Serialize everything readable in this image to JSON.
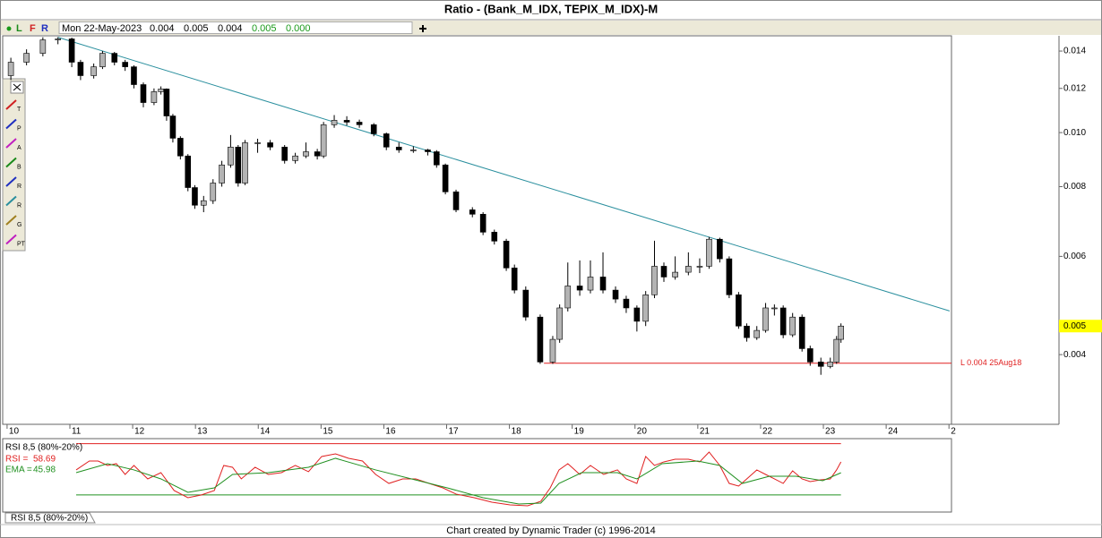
{
  "header": {
    "title": "Ratio - (Bank_M_IDX, TEPIX_M_IDX)-M",
    "flags": [
      "L",
      "F",
      "R"
    ],
    "date": "Mon 22-May-2023",
    "quote": [
      "0.004",
      "0.005",
      "0.004",
      "0.005",
      "0.000"
    ]
  },
  "tools": [
    "T",
    "P",
    "A",
    "B",
    "R",
    "R",
    "G",
    "PT"
  ],
  "chart_data": [
    {
      "type": "candlestick",
      "log_scale": true,
      "up_color": "#b4b4b4",
      "down_color": "#000000",
      "x": [
        10.06,
        10.31,
        10.57,
        10.81,
        11.03,
        11.17,
        11.38,
        11.52,
        11.71,
        11.88,
        12.02,
        12.17,
        12.34,
        12.45,
        12.54,
        12.64,
        12.76,
        12.88,
        12.99,
        13.13,
        13.28,
        13.42,
        13.56,
        13.68,
        13.79,
        13.99,
        14.19,
        14.42,
        14.59,
        14.76,
        14.94,
        15.04,
        15.21,
        15.41,
        15.61,
        15.84,
        16.04,
        16.24,
        16.47,
        16.7,
        16.84,
        16.98,
        17.15,
        17.41,
        17.58,
        17.76,
        17.95,
        18.08,
        18.26,
        18.49,
        18.69,
        18.8,
        18.93,
        19.12,
        19.29,
        19.49,
        19.69,
        19.86,
        20.03,
        20.17,
        20.31,
        20.46,
        20.64,
        20.85,
        21.03,
        21.18,
        21.35,
        21.5,
        21.65,
        21.78,
        21.94,
        22.08,
        22.22,
        22.36,
        22.51,
        22.66,
        22.79,
        22.96,
        23.11,
        23.21,
        23.28
      ],
      "open": [
        0.01265,
        0.01337,
        0.01387,
        0.01466,
        0.01472,
        0.01337,
        0.01265,
        0.01312,
        0.01387,
        0.01337,
        0.01312,
        0.01219,
        0.01132,
        0.01184,
        0.01197,
        0.01071,
        0.00977,
        0.00908,
        0.00797,
        0.00741,
        0.00755,
        0.00812,
        0.00875,
        0.00942,
        0.00812,
        0.00959,
        0.00959,
        0.00942,
        0.00891,
        0.00908,
        0.00924,
        0.00908,
        0.01033,
        0.01052,
        0.01044,
        0.01033,
        0.00995,
        0.00942,
        0.00931,
        0.00931,
        0.00924,
        0.00875,
        0.00783,
        0.00727,
        0.00714,
        0.00663,
        0.00639,
        0.00572,
        0.00522,
        0.00467,
        0.00388,
        0.00426,
        0.00485,
        0.00531,
        0.00522,
        0.00551,
        0.00522,
        0.00503,
        0.00485,
        0.00459,
        0.00512,
        0.00576,
        0.00551,
        0.00562,
        0.00576,
        0.00576,
        0.00644,
        0.00594,
        0.00512,
        0.0045,
        0.00429,
        0.00442,
        0.00485,
        0.00485,
        0.00434,
        0.00467,
        0.0041,
        0.00388,
        0.00381,
        0.00388,
        0.00426
      ],
      "high": [
        0.01362,
        0.0141,
        0.01482,
        0.01482,
        0.0148,
        0.0135,
        0.0133,
        0.014,
        0.01395,
        0.0135,
        0.0132,
        0.0123,
        0.012,
        0.0121,
        0.012,
        0.0108,
        0.00985,
        0.00915,
        0.00805,
        0.0077,
        0.00825,
        0.0089,
        0.0099,
        0.0095,
        0.0097,
        0.00975,
        0.0097,
        0.0095,
        0.0092,
        0.0096,
        0.00935,
        0.01045,
        0.01075,
        0.0107,
        0.01055,
        0.0104,
        0.01,
        0.0096,
        0.00945,
        0.00935,
        0.0093,
        0.0088,
        0.0079,
        0.00735,
        0.0072,
        0.0067,
        0.00645,
        0.0058,
        0.0053,
        0.00472,
        0.00432,
        0.00492,
        0.00585,
        0.0059,
        0.0059,
        0.0061,
        0.0053,
        0.0051,
        0.0049,
        0.0052,
        0.0064,
        0.00585,
        0.006,
        0.0061,
        0.00595,
        0.0065,
        0.00648,
        0.006,
        0.00518,
        0.00455,
        0.0045,
        0.00495,
        0.00492,
        0.0049,
        0.00475,
        0.00472,
        0.00415,
        0.00395,
        0.00395,
        0.00432,
        0.00455
      ],
      "low": [
        0.01242,
        0.0132,
        0.0137,
        0.0144,
        0.0131,
        0.01242,
        0.0125,
        0.013,
        0.0132,
        0.0129,
        0.012,
        0.0111,
        0.0112,
        0.0117,
        0.0105,
        0.0096,
        0.00895,
        0.00785,
        0.0073,
        0.0072,
        0.00745,
        0.008,
        0.00865,
        0.008,
        0.00805,
        0.0092,
        0.0093,
        0.0088,
        0.0088,
        0.009,
        0.00895,
        0.009,
        0.0102,
        0.0103,
        0.0102,
        0.00985,
        0.0093,
        0.0092,
        0.0092,
        0.0091,
        0.00865,
        0.00775,
        0.0072,
        0.00705,
        0.00655,
        0.0063,
        0.00565,
        0.00515,
        0.0046,
        0.00385,
        0.00385,
        0.0042,
        0.00478,
        0.0051,
        0.00515,
        0.00515,
        0.00495,
        0.00475,
        0.0044,
        0.0045,
        0.00505,
        0.0054,
        0.00545,
        0.00555,
        0.0056,
        0.0057,
        0.00585,
        0.00505,
        0.00445,
        0.00422,
        0.00425,
        0.00438,
        0.0047,
        0.00428,
        0.0043,
        0.00405,
        0.00382,
        0.00368,
        0.00378,
        0.00385,
        0.0042
      ],
      "close": [
        0.01337,
        0.01387,
        0.01466,
        0.01472,
        0.01337,
        0.01265,
        0.01312,
        0.01387,
        0.01337,
        0.01312,
        0.01219,
        0.01132,
        0.01184,
        0.01197,
        0.01071,
        0.00977,
        0.00908,
        0.00797,
        0.00741,
        0.00755,
        0.00812,
        0.00875,
        0.00942,
        0.00812,
        0.00959,
        0.00959,
        0.00942,
        0.00891,
        0.00908,
        0.00924,
        0.00908,
        0.01033,
        0.01052,
        0.01044,
        0.01033,
        0.00995,
        0.00942,
        0.00931,
        0.00931,
        0.00924,
        0.00875,
        0.00783,
        0.00727,
        0.00714,
        0.00663,
        0.00639,
        0.00572,
        0.00522,
        0.00467,
        0.00388,
        0.00426,
        0.00485,
        0.00531,
        0.00522,
        0.00551,
        0.00522,
        0.00503,
        0.00485,
        0.00459,
        0.00512,
        0.00576,
        0.00551,
        0.00562,
        0.00576,
        0.00576,
        0.00644,
        0.00594,
        0.00512,
        0.0045,
        0.00429,
        0.00442,
        0.00485,
        0.00485,
        0.00434,
        0.00467,
        0.0041,
        0.00388,
        0.00381,
        0.00388,
        0.00426,
        0.0045
      ],
      "xlim": [
        9.93,
        25.04
      ],
      "xticks": [
        10,
        11,
        12,
        13,
        14,
        15,
        16,
        17,
        18,
        19,
        20,
        21,
        22,
        23,
        24,
        {
          "value": 25,
          "label": "2"
        }
      ],
      "ylim": [
        0.003,
        0.0148
      ],
      "yticks": [
        0.004,
        0.006,
        0.008,
        {
          "value": 0.01,
          "label": "0.010"
        },
        0.012,
        0.014
      ],
      "trendline": {
        "x": [
          10.81,
          25.01
        ],
        "values": [
          0.01482,
          0.00479
        ],
        "color": "#2a8f9e"
      },
      "support": {
        "x": [
          18.55,
          25.04
        ],
        "values": [
          0.00386,
          0.00386
        ],
        "color": "#e02020",
        "label": "L 0.004 25Aug18"
      },
      "price_marker": {
        "value": 0.0045,
        "label": "0.005",
        "color": "#ffff00"
      }
    },
    {
      "type": "line",
      "title": "RSI 8,5 (80%-20%)",
      "ylim": [
        0,
        88
      ],
      "levels": [
        {
          "value": 80,
          "color": "#e02020"
        },
        {
          "value": 20,
          "color": "#209020"
        }
      ],
      "series": [
        {
          "name": "RSI =",
          "color": "#e02020",
          "x": [
            11.1,
            11.31,
            11.45,
            11.6,
            11.74,
            11.88,
            12.02,
            12.24,
            12.45,
            12.66,
            12.88,
            13.09,
            13.3,
            13.45,
            13.59,
            13.73,
            13.95,
            14.16,
            14.37,
            14.59,
            14.8,
            15.01,
            15.23,
            15.44,
            15.66,
            15.87,
            16.08,
            16.3,
            16.51,
            16.72,
            16.94,
            17.15,
            17.44,
            17.72,
            18.01,
            18.29,
            18.5,
            18.65,
            18.79,
            18.93,
            19.12,
            19.29,
            19.5,
            19.72,
            19.86,
            20.03,
            20.17,
            20.31,
            20.46,
            20.64,
            20.85,
            21.03,
            21.18,
            21.35,
            21.5,
            21.65,
            21.78,
            21.94,
            22.08,
            22.22,
            22.36,
            22.51,
            22.66,
            22.79,
            22.96,
            23.11,
            23.21,
            23.28
          ],
          "values": [
            49.3,
            59.7,
            59.7,
            54.5,
            56.6,
            44.0,
            54.5,
            38.8,
            46.1,
            25.2,
            16.8,
            19.9,
            25.2,
            54.5,
            52.4,
            38.8,
            52.4,
            44.0,
            46.1,
            54.5,
            47.2,
            65.0,
            68.1,
            62.9,
            59.7,
            44.0,
            33.5,
            38.8,
            38.8,
            33.5,
            28.3,
            21.0,
            16.8,
            11.5,
            8.4,
            7.3,
            12.6,
            28.3,
            49.3,
            56.6,
            44.0,
            54.5,
            44.0,
            49.3,
            38.8,
            33.5,
            65.0,
            54.5,
            58.7,
            61.8,
            61.8,
            58.7,
            70.2,
            54.5,
            33.5,
            30.4,
            38.8,
            49.3,
            44.0,
            38.8,
            33.5,
            48.2,
            38.8,
            35.6,
            37.7,
            38.8,
            49.3,
            58.69
          ]
        },
        {
          "name": "EMA =",
          "color": "#209020",
          "x": [
            11.1,
            11.6,
            12.02,
            12.45,
            12.88,
            13.3,
            13.59,
            14.16,
            14.8,
            15.23,
            15.87,
            16.44,
            17.01,
            17.58,
            18.15,
            18.5,
            18.79,
            19.15,
            19.72,
            20.03,
            20.43,
            21.0,
            21.35,
            21.71,
            22.14,
            22.56,
            22.99,
            23.28
          ],
          "values": [
            46.1,
            56.6,
            49.3,
            38.8,
            23.1,
            28.3,
            44.0,
            46.1,
            52.4,
            62.9,
            49.3,
            38.8,
            28.3,
            16.8,
            9.4,
            10.5,
            33.5,
            46.1,
            46.1,
            38.8,
            56.6,
            59.7,
            54.5,
            33.5,
            41.9,
            41.9,
            36.7,
            45.98
          ]
        }
      ]
    }
  ],
  "tab": "RSI 8,5 (80%-20%)",
  "footer": "Chart created by Dynamic Trader  (c) 1996-2014"
}
